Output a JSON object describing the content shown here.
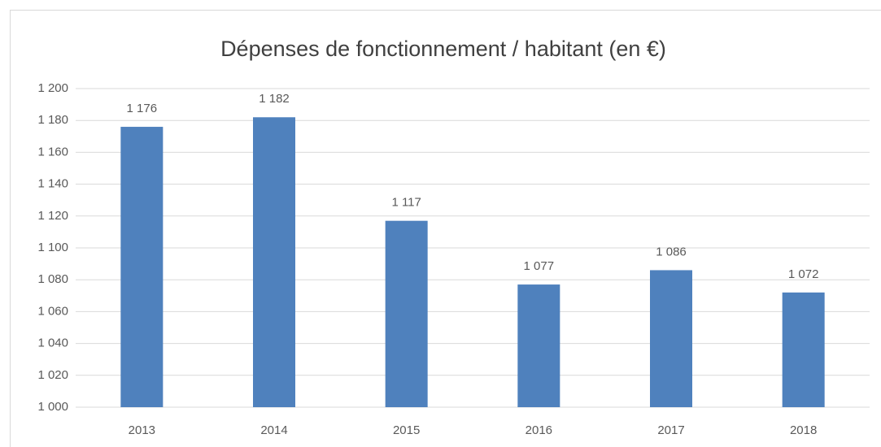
{
  "chart_data": {
    "type": "bar",
    "title": "Dépenses de fonctionnement / habitant (en €)",
    "categories": [
      "2013",
      "2014",
      "2015",
      "2016",
      "2017",
      "2018"
    ],
    "values": [
      1176,
      1182,
      1117,
      1077,
      1086,
      1072
    ],
    "value_labels": [
      "1 176",
      "1 182",
      "1 117",
      "1 077",
      "1 086",
      "1 072"
    ],
    "color": "#4f81bd",
    "ylim": [
      1000,
      1200
    ],
    "yticks": [
      {
        "value": 1000,
        "label": "1 000"
      },
      {
        "value": 1020,
        "label": "1 020"
      },
      {
        "value": 1040,
        "label": "1 040"
      },
      {
        "value": 1060,
        "label": "1 060"
      },
      {
        "value": 1080,
        "label": "1 080"
      },
      {
        "value": 1100,
        "label": "1 100"
      },
      {
        "value": 1120,
        "label": "1 120"
      },
      {
        "value": 1140,
        "label": "1 140"
      },
      {
        "value": 1160,
        "label": "1 160"
      },
      {
        "value": 1180,
        "label": "1 180"
      },
      {
        "value": 1200,
        "label": "1 200"
      }
    ],
    "grid": true
  }
}
